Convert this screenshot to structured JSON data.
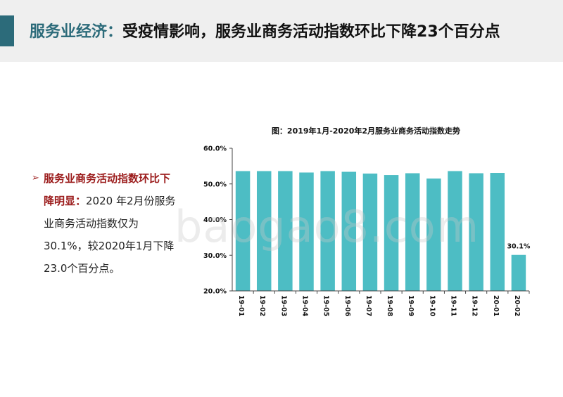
{
  "header": {
    "topic": "服务业经济：",
    "title": "受疫情影响，服务业商务活动指数环比下降23个百分点"
  },
  "bullet": {
    "head": "服务业商务活动指数环比下降明显：",
    "body": "2020 年2月份服务业商务活动指数仅为30.1%，较2020年1月下降23.0个百分点。"
  },
  "watermark": "baogao8.com",
  "colors": {
    "bar": "#4dbdc4",
    "accent": "#2c6b7a",
    "highlight": "#9b1b1b"
  },
  "chart_data": {
    "type": "bar",
    "title": "图：2019年1月-2020年2月服务业商务活动指数走势",
    "categories": [
      "19-01",
      "19-02",
      "19-03",
      "19-04",
      "19-05",
      "19-06",
      "19-07",
      "19-08",
      "19-09",
      "19-10",
      "19-11",
      "19-12",
      "20-01",
      "20-02"
    ],
    "values": [
      53.6,
      53.6,
      53.6,
      53.2,
      53.6,
      53.4,
      52.9,
      52.5,
      53.0,
      51.5,
      53.6,
      53.0,
      53.1,
      30.1
    ],
    "ylim": [
      20,
      60
    ],
    "yticks": [
      "20.0%",
      "30.0%",
      "40.0%",
      "50.0%",
      "60.0%"
    ],
    "ytick_values": [
      20,
      30,
      40,
      50,
      60
    ],
    "data_labels": [
      {
        "index": 13,
        "text": "30.1%"
      }
    ],
    "xlabel": "",
    "ylabel": "",
    "grid": false,
    "legend": "none"
  }
}
